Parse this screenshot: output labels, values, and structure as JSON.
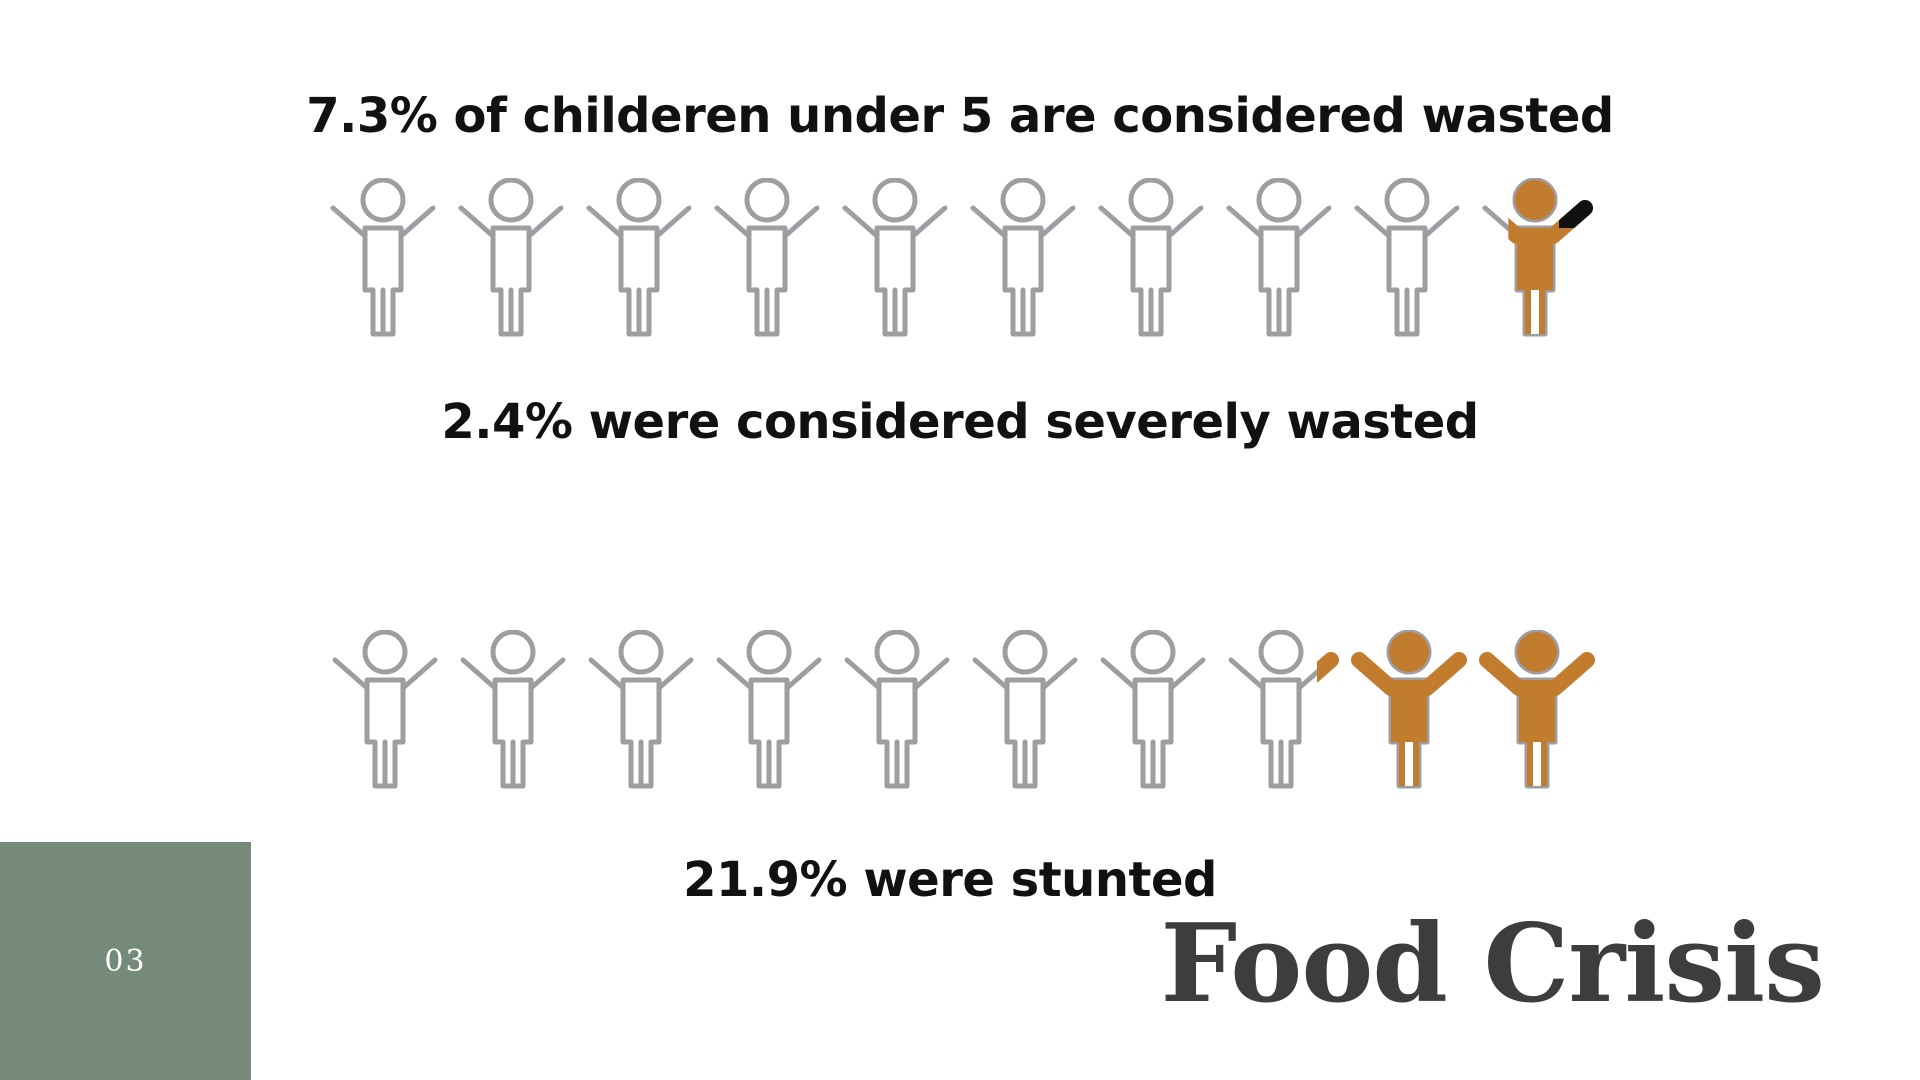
{
  "stats": [
    {
      "text": "7.3% of childeren under 5 are considered wasted"
    },
    {
      "text": "2.4% were considered severely wasted"
    },
    {
      "text": "21.9% were stunted"
    }
  ],
  "pictograms": [
    {
      "total_figures": 10,
      "filled_figures": 0.73,
      "severe_fraction": 0.24
    },
    {
      "total_figures": 10,
      "filled_figures": 2.19
    }
  ],
  "colors": {
    "outline": "#9e9ea2",
    "fill": "#c27c2e",
    "severe": "#111111",
    "page_box": "#758a78",
    "title": "#3d3d3d",
    "text": "#111111"
  },
  "page_number": "03",
  "slide_title": "Food Crisis"
}
